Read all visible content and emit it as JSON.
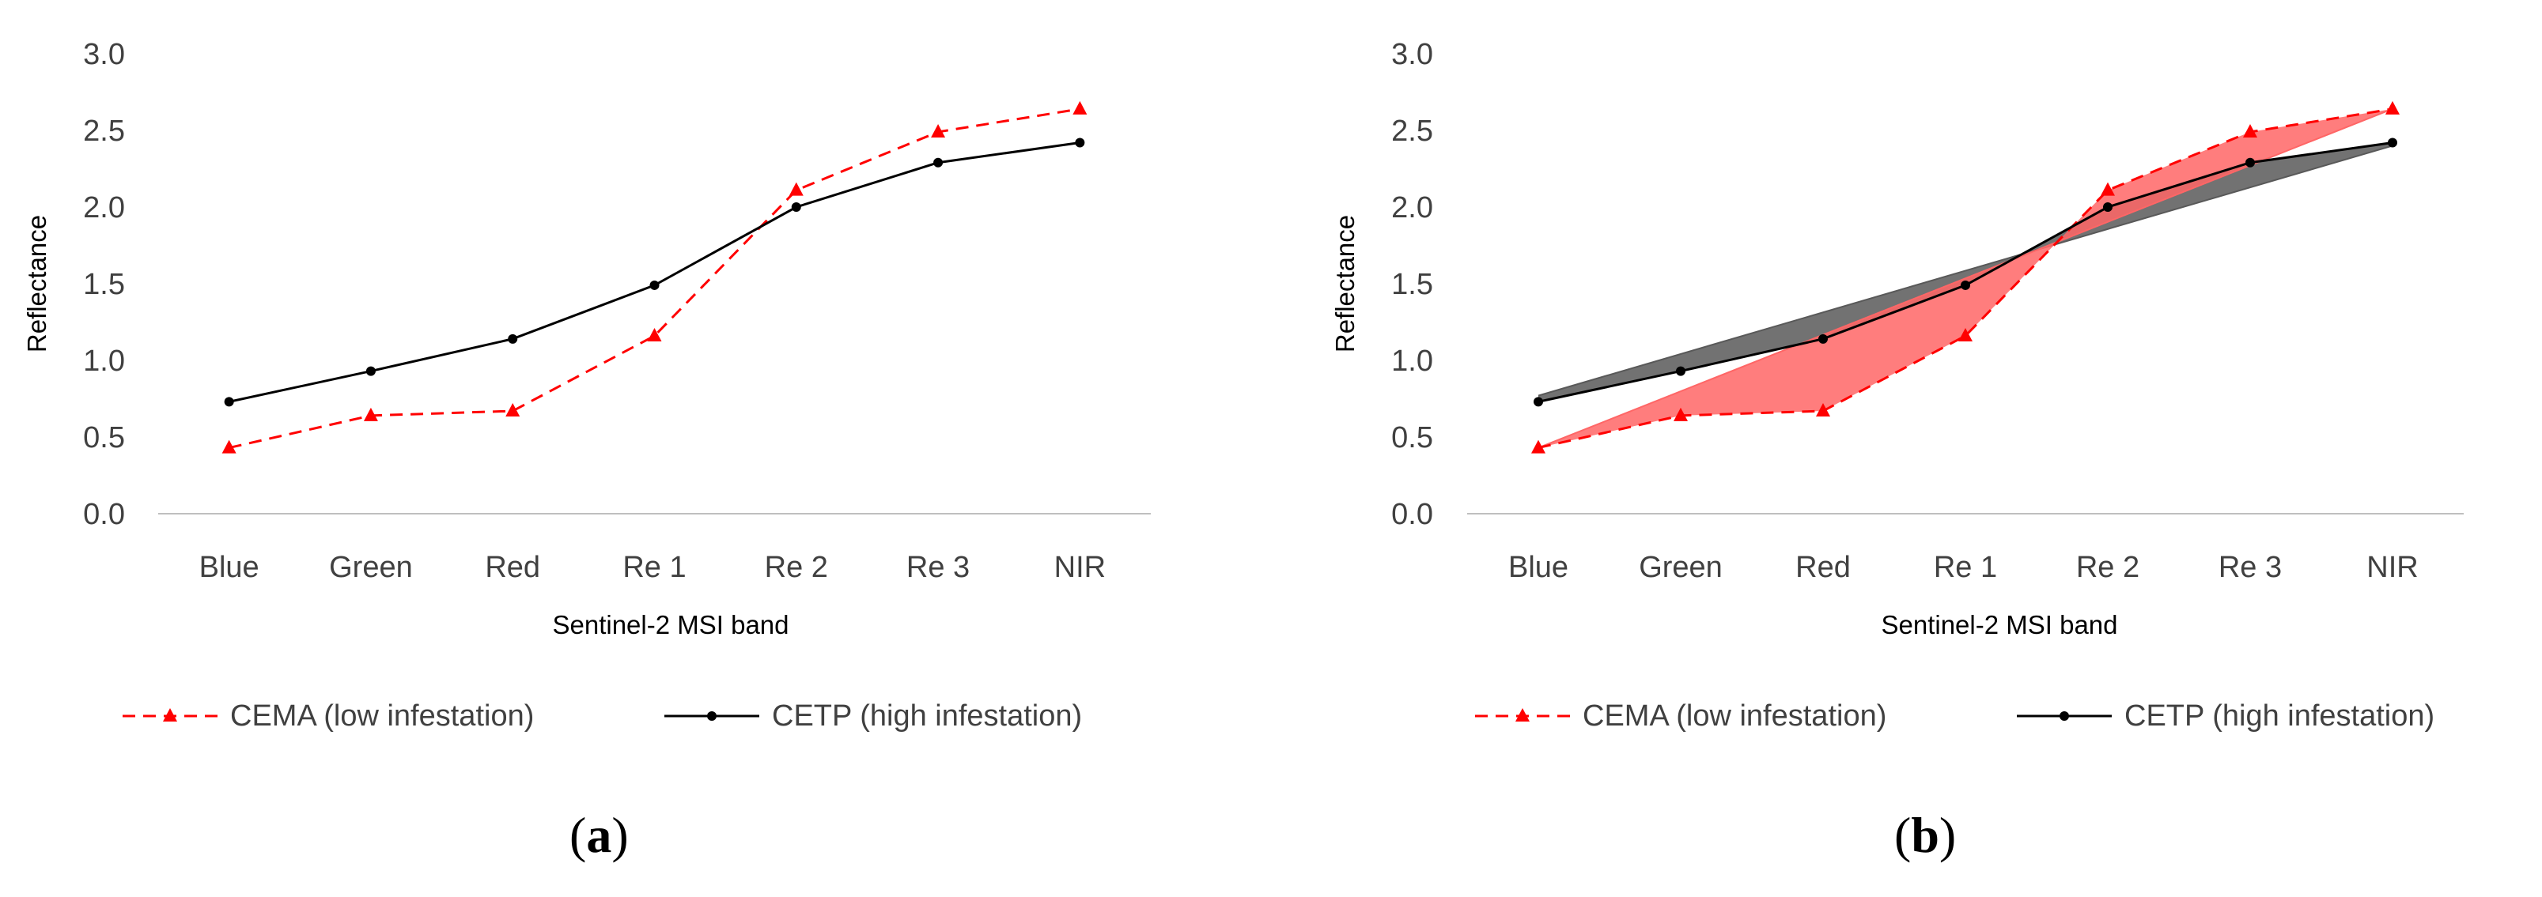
{
  "chart_data": [
    {
      "type": "line",
      "panel_label_prefix": "(",
      "panel_label_letter": "a",
      "panel_label_suffix": ")",
      "xlabel": "Sentinel-2 MSI band",
      "ylabel": "Reflectance",
      "ylim": [
        0,
        3
      ],
      "yticks": [
        "0.0",
        "0.5",
        "1.0",
        "1.5",
        "2.0",
        "2.5",
        "3.0"
      ],
      "grid": false,
      "categories": [
        "Blue",
        "Green",
        "Red",
        "Re 1",
        "Re 2",
        "Re 3",
        "NIR"
      ],
      "series": [
        {
          "name": "CEMA (low infestation)",
          "values": [
            0.43,
            0.64,
            0.67,
            1.16,
            2.11,
            2.49,
            2.64
          ]
        },
        {
          "name": "CETP (high infestation)",
          "values": [
            0.73,
            0.93,
            1.14,
            1.49,
            2.0,
            2.29,
            2.42
          ]
        }
      ],
      "legend": "bottom"
    },
    {
      "type": "line",
      "panel_label_prefix": "(",
      "panel_label_letter": "b",
      "panel_label_suffix": ")",
      "xlabel": "Sentinel-2 MSI band",
      "ylabel": "Reflectance",
      "ylim": [
        0,
        3
      ],
      "yticks": [
        "0.0",
        "0.5",
        "1.0",
        "1.5",
        "2.0",
        "2.5",
        "3.0"
      ],
      "grid": false,
      "categories": [
        "Blue",
        "Green",
        "Red",
        "Re 1",
        "Re 2",
        "Re 3",
        "NIR"
      ],
      "series": [
        {
          "name": "CEMA (low infestation)",
          "values": [
            0.43,
            0.64,
            0.67,
            1.16,
            2.11,
            2.49,
            2.64
          ]
        },
        {
          "name": "CETP (high infestation)",
          "values": [
            0.73,
            0.93,
            1.14,
            1.49,
            2.0,
            2.29,
            2.42
          ]
        }
      ],
      "shaded_areas": [
        {
          "series": "CETP (high infestation)",
          "color": "#595959",
          "opacity": 0.85,
          "baseline_from": 0.77,
          "baseline_to": 2.4
        },
        {
          "series": "CEMA (low infestation)",
          "color": "#ff6666",
          "opacity": 0.85,
          "baseline_from": 0.43,
          "baseline_to": 2.64
        }
      ],
      "legend": "bottom"
    }
  ],
  "colors": {
    "cema": "#ff0000",
    "cetp": "#000000",
    "axis": "#bfbfbf"
  }
}
